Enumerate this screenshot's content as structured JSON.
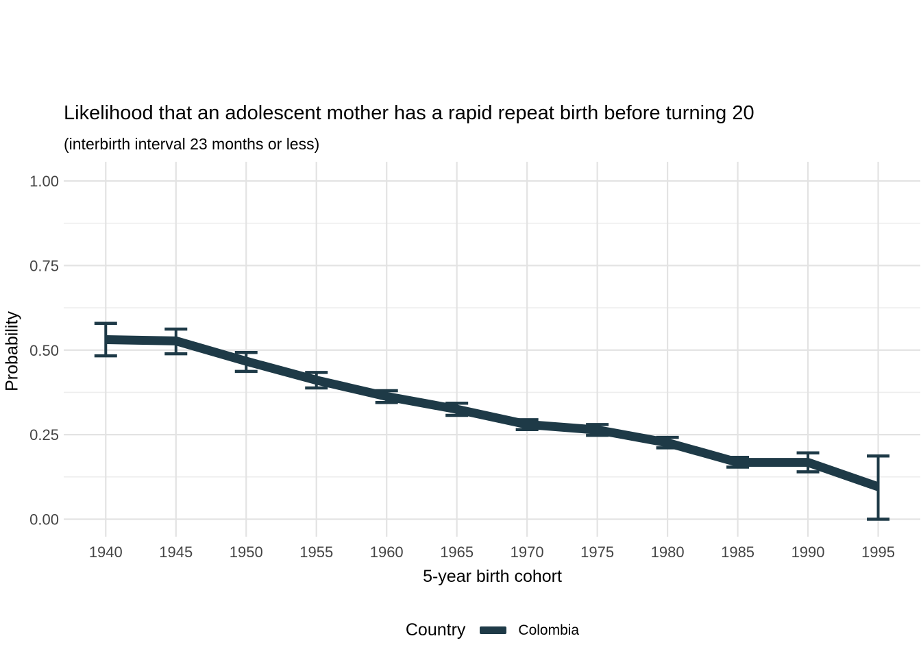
{
  "page": {
    "background": "#ffffff"
  },
  "chart_data": {
    "type": "line",
    "title": "Likelihood that an adolescent mother has a rapid repeat birth before turning 20",
    "subtitle": "(interbirth interval 23 months or less)",
    "xlabel": "5-year birth cohort",
    "ylabel": "Probability",
    "x": [
      1940,
      1945,
      1950,
      1955,
      1960,
      1965,
      1970,
      1975,
      1980,
      1985,
      1990,
      1995
    ],
    "x_tick_labels": [
      "1940",
      "1945",
      "1950",
      "1955",
      "1960",
      "1965",
      "1970",
      "1975",
      "1980",
      "1985",
      "1990",
      "1995"
    ],
    "series": [
      {
        "name": "Colombia",
        "color": "#1e3a47",
        "values": [
          0.531,
          0.527,
          0.467,
          0.411,
          0.363,
          0.325,
          0.28,
          0.264,
          0.226,
          0.168,
          0.168,
          0.096
        ],
        "ci_low": [
          0.483,
          0.489,
          0.437,
          0.388,
          0.345,
          0.307,
          0.265,
          0.248,
          0.211,
          0.154,
          0.14,
          0.0
        ],
        "ci_high": [
          0.579,
          0.562,
          0.493,
          0.434,
          0.38,
          0.343,
          0.294,
          0.28,
          0.242,
          0.183,
          0.196,
          0.187
        ]
      }
    ],
    "y_tick_labels": [
      "0.00",
      "0.25",
      "0.50",
      "0.75",
      "1.00"
    ],
    "y_tick_values": [
      0,
      0.25,
      0.5,
      0.75,
      1.0
    ],
    "y_minor_values": [
      0.125,
      0.375,
      0.625,
      0.875
    ],
    "ylim": [
      0,
      1
    ],
    "xlim": [
      1937,
      1998
    ],
    "grid": "horizontal major+minor, vertical major only",
    "error_bars": true,
    "legend": {
      "title": "Country",
      "position": "bottom"
    }
  },
  "theme": {
    "series_color": "#1e3a47",
    "grid_major_color": "#e3e3e3",
    "grid_minor_color": "#ededed",
    "tick_text_color": "#444444",
    "title_text_color": "#000000"
  }
}
